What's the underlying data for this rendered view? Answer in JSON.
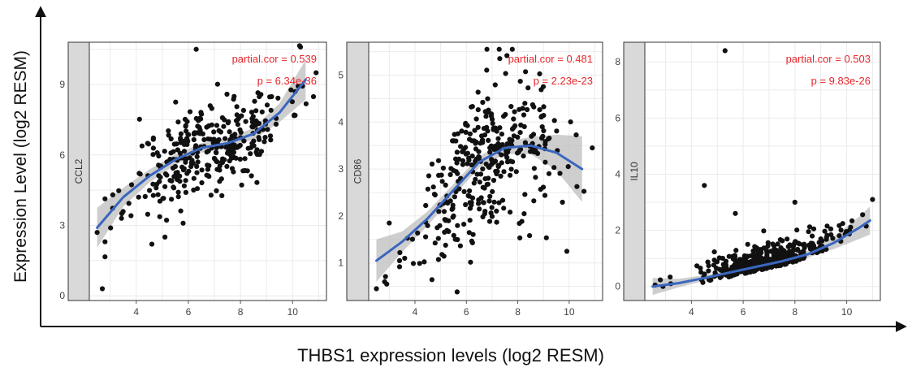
{
  "figure": {
    "ylabel": "Expression Level (log2 RESM)",
    "xlabel": "THBS1 expression levels (log2 RESM)"
  },
  "colors": {
    "point": "#111111",
    "fit_line": "#3a66bf",
    "confidence_band": "#bdbdbd",
    "stat_text": "#e8262a",
    "strip": "#d9d9d9",
    "grid": "#ebebeb"
  },
  "chart_data": [
    {
      "type": "scatter",
      "gene": "CCL2",
      "partial_cor_label": "partial.cor = 0.539",
      "p_label": "p = 6.34e-36",
      "xlim": [
        2.2,
        11.3
      ],
      "ylim": [
        -0.2,
        10.8
      ],
      "x_ticks": [
        4,
        6,
        8,
        10
      ],
      "y_ticks": [
        0,
        3,
        6,
        9
      ],
      "fit_line": [
        [
          2.5,
          2.9
        ],
        [
          3.5,
          4.2
        ],
        [
          4.5,
          5.1
        ],
        [
          5.5,
          5.8
        ],
        [
          6.5,
          6.3
        ],
        [
          7.5,
          6.5
        ],
        [
          8.5,
          6.9
        ],
        [
          9.5,
          7.8
        ],
        [
          10.5,
          9.2
        ]
      ],
      "band_halfwidth": [
        [
          2.5,
          0.85
        ],
        [
          3.5,
          0.4
        ],
        [
          4.5,
          0.28
        ],
        [
          5.5,
          0.22
        ],
        [
          6.5,
          0.2
        ],
        [
          7.5,
          0.2
        ],
        [
          8.5,
          0.25
        ],
        [
          9.5,
          0.4
        ],
        [
          10.5,
          0.85
        ]
      ],
      "seed": 11,
      "n_random": 330,
      "x_mean": 6.8,
      "x_sd": 1.5,
      "noise_sd": 0.95,
      "outliers": [
        [
          2.5,
          2.7
        ],
        [
          2.7,
          0.3
        ],
        [
          2.8,
          2.3
        ],
        [
          6.3,
          10.5
        ],
        [
          10.9,
          9.5
        ],
        [
          4.6,
          2.2
        ],
        [
          5.1,
          2.5
        ],
        [
          10.1,
          8.7
        ],
        [
          3.1,
          4.3
        ]
      ]
    },
    {
      "type": "scatter",
      "gene": "CD86",
      "partial_cor_label": "partial.cor = 0.481",
      "p_label": "p = 2.23e-23",
      "xlim": [
        2.2,
        11.3
      ],
      "ylim": [
        0.2,
        5.7
      ],
      "x_ticks": [
        4,
        6,
        8,
        10
      ],
      "y_ticks": [
        1,
        2,
        3,
        4,
        5
      ],
      "fit_line": [
        [
          2.5,
          1.05
        ],
        [
          3.5,
          1.45
        ],
        [
          4.5,
          1.95
        ],
        [
          5.5,
          2.55
        ],
        [
          6.5,
          3.15
        ],
        [
          7.5,
          3.45
        ],
        [
          8.5,
          3.5
        ],
        [
          9.5,
          3.35
        ],
        [
          10.5,
          3.0
        ]
      ],
      "band_halfwidth": [
        [
          2.5,
          0.45
        ],
        [
          3.5,
          0.22
        ],
        [
          4.5,
          0.15
        ],
        [
          5.5,
          0.13
        ],
        [
          6.5,
          0.12
        ],
        [
          7.5,
          0.13
        ],
        [
          8.5,
          0.18
        ],
        [
          9.5,
          0.38
        ],
        [
          10.5,
          0.7
        ]
      ],
      "seed": 29,
      "n_random": 340,
      "x_mean": 6.6,
      "x_sd": 1.4,
      "noise_sd": 0.75,
      "outliers": [
        [
          2.5,
          0.45
        ],
        [
          2.9,
          0.55
        ],
        [
          3.4,
          1.05
        ],
        [
          6.8,
          5.55
        ],
        [
          7.3,
          5.35
        ],
        [
          10.9,
          3.45
        ],
        [
          3.0,
          1.85
        ],
        [
          3.6,
          1.1
        ]
      ]
    },
    {
      "type": "scatter",
      "gene": "IL10",
      "partial_cor_label": "partial.cor = 0.503",
      "p_label": "p = 9.83e-26",
      "xlim": [
        2.2,
        11.3
      ],
      "ylim": [
        -0.5,
        8.7
      ],
      "x_ticks": [
        4,
        6,
        8,
        10
      ],
      "y_ticks": [
        0,
        2,
        4,
        6,
        8
      ],
      "fit_line": [
        [
          2.5,
          0.0
        ],
        [
          3.5,
          0.12
        ],
        [
          4.5,
          0.3
        ],
        [
          5.5,
          0.5
        ],
        [
          6.5,
          0.7
        ],
        [
          7.5,
          0.9
        ],
        [
          8.5,
          1.15
        ],
        [
          9.5,
          1.55
        ],
        [
          10.5,
          2.1
        ],
        [
          10.9,
          2.35
        ]
      ],
      "band_halfwidth": [
        [
          2.5,
          0.3
        ],
        [
          3.5,
          0.15
        ],
        [
          4.5,
          0.1
        ],
        [
          5.5,
          0.08
        ],
        [
          6.5,
          0.07
        ],
        [
          7.5,
          0.08
        ],
        [
          8.5,
          0.12
        ],
        [
          9.5,
          0.22
        ],
        [
          10.5,
          0.4
        ],
        [
          10.9,
          0.5
        ]
      ],
      "seed": 47,
      "n_random": 380,
      "x_mean": 6.8,
      "x_sd": 1.3,
      "noise_sd": 0.45,
      "outliers": [
        [
          5.3,
          8.4
        ],
        [
          4.5,
          3.6
        ],
        [
          11.0,
          3.1
        ],
        [
          8.0,
          3.0
        ],
        [
          2.6,
          0.05
        ],
        [
          2.9,
          0.0
        ],
        [
          3.2,
          0.1
        ],
        [
          5.7,
          2.6
        ]
      ]
    }
  ]
}
